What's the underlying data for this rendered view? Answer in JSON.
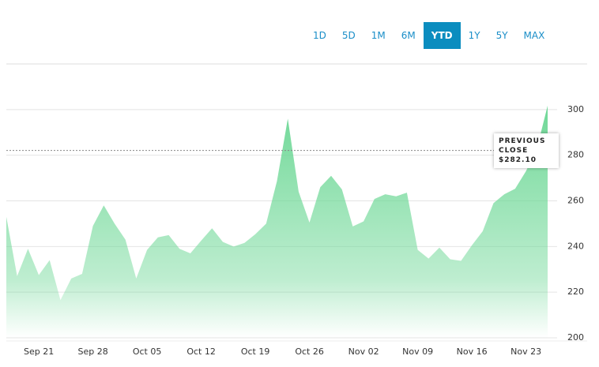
{
  "range_buttons": [
    "1D",
    "5D",
    "1M",
    "6M",
    "YTD",
    "1Y",
    "5Y",
    "MAX"
  ],
  "active_range": "YTD",
  "chart_data": {
    "type": "area",
    "color": "#6fd897",
    "categories": [
      null,
      null,
      null,
      "Sep 21",
      null,
      null,
      null,
      null,
      "Sep 28",
      null,
      null,
      null,
      null,
      "Oct 05",
      null,
      null,
      null,
      null,
      "Oct 12",
      null,
      null,
      null,
      null,
      "Oct 19",
      null,
      null,
      null,
      null,
      "Oct 26",
      null,
      null,
      null,
      null,
      "Nov 02",
      null,
      null,
      null,
      null,
      "Nov 09",
      null,
      null,
      null,
      null,
      "Nov 16",
      null,
      null,
      null,
      null,
      "Nov 23",
      null,
      null
    ],
    "values": [
      253,
      227,
      239,
      227.5,
      234,
      216.5,
      226,
      228,
      249,
      258,
      250,
      243,
      226,
      238.5,
      244,
      245,
      239,
      237,
      242.6,
      248,
      242,
      240,
      241.6,
      245.4,
      250,
      268.7,
      296,
      264,
      250.5,
      266,
      271,
      265,
      248.8,
      251,
      260.8,
      262.9,
      262,
      263.6,
      238.5,
      234.7,
      239.5,
      234.4,
      233.7,
      240.5,
      246.7,
      259,
      262.9,
      265.3,
      273,
      282.8,
      301.7
    ],
    "ylim": [
      200,
      320
    ],
    "yticks": [
      200,
      220,
      240,
      260,
      280,
      300
    ],
    "grid": true,
    "previous_close_title": "PREVIOUS CLOSE",
    "previous_close": {
      "value": 282.1,
      "label": "$282.10"
    }
  }
}
